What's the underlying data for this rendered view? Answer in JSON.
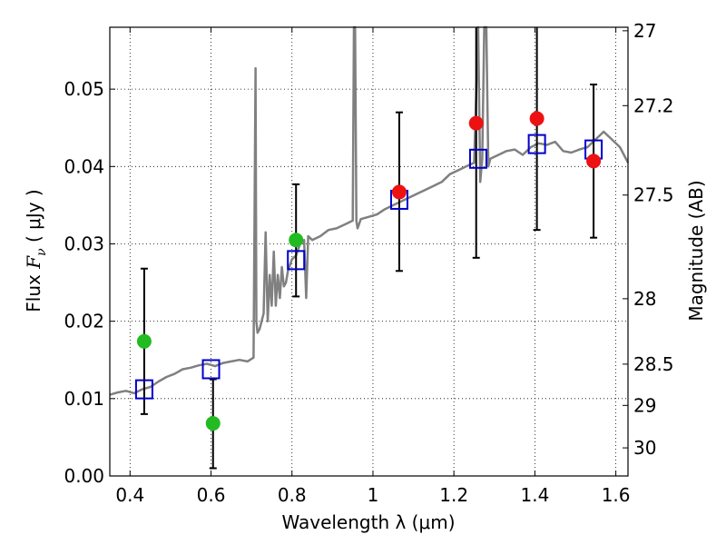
{
  "chart_data": {
    "type": "scatter",
    "xlabel": "Wavelength  λ (μm)",
    "ylabel_left_prefix": "Flux  ",
    "ylabel_left_symbol": "F",
    "ylabel_left_subscript": "ν",
    "ylabel_left_unit": "  ( μJy )",
    "ylabel_right": "Magnitude (AB)",
    "xlim": [
      0.35,
      1.63
    ],
    "ylim": [
      0.0,
      0.058
    ],
    "grid": true,
    "x_ticks": [
      {
        "value": 0.4,
        "label": "0.4"
      },
      {
        "value": 0.6,
        "label": "0.6"
      },
      {
        "value": 0.8,
        "label": "0.8"
      },
      {
        "value": 1.0,
        "label": "1"
      },
      {
        "value": 1.2,
        "label": "1.2"
      },
      {
        "value": 1.4,
        "label": "1.4"
      },
      {
        "value": 1.6,
        "label": "1.6"
      }
    ],
    "y_ticks": [
      {
        "value": 0.0,
        "label": "0.00"
      },
      {
        "value": 0.01,
        "label": "0.01"
      },
      {
        "value": 0.02,
        "label": "0.02"
      },
      {
        "value": 0.03,
        "label": "0.03"
      },
      {
        "value": 0.04,
        "label": "0.04"
      },
      {
        "value": 0.05,
        "label": "0.05"
      }
    ],
    "right_ticks": [
      {
        "mag": 27,
        "label": "27"
      },
      {
        "mag": 27.2,
        "label": "27.2"
      },
      {
        "mag": 27.5,
        "label": "27.5"
      },
      {
        "mag": 28,
        "label": "28"
      },
      {
        "mag": 28.5,
        "label": "28.5"
      },
      {
        "mag": 29,
        "label": "29"
      },
      {
        "mag": 30,
        "label": "30"
      }
    ],
    "template_spectrum": {
      "color": "#808080",
      "x": [
        0.35,
        0.37,
        0.39,
        0.41,
        0.43,
        0.45,
        0.47,
        0.49,
        0.51,
        0.53,
        0.55,
        0.57,
        0.59,
        0.61,
        0.63,
        0.65,
        0.67,
        0.69,
        0.705,
        0.71,
        0.712,
        0.715,
        0.72,
        0.73,
        0.735,
        0.74,
        0.745,
        0.75,
        0.755,
        0.76,
        0.765,
        0.77,
        0.775,
        0.78,
        0.785,
        0.79,
        0.8,
        0.81,
        0.82,
        0.83,
        0.835,
        0.84,
        0.85,
        0.87,
        0.89,
        0.91,
        0.93,
        0.95,
        0.953,
        0.956,
        0.959,
        0.962,
        0.97,
        0.99,
        1.01,
        1.03,
        1.05,
        1.07,
        1.09,
        1.11,
        1.13,
        1.15,
        1.17,
        1.19,
        1.21,
        1.23,
        1.25,
        1.26,
        1.265,
        1.27,
        1.275,
        1.28,
        1.285,
        1.29,
        1.31,
        1.33,
        1.35,
        1.37,
        1.39,
        1.41,
        1.43,
        1.45,
        1.47,
        1.49,
        1.51,
        1.53,
        1.55,
        1.57,
        1.59,
        1.61,
        1.63
      ],
      "y": [
        0.0105,
        0.0108,
        0.011,
        0.0107,
        0.0112,
        0.0115,
        0.0122,
        0.0128,
        0.0132,
        0.0138,
        0.014,
        0.0143,
        0.0145,
        0.0142,
        0.0146,
        0.0148,
        0.015,
        0.0148,
        0.0153,
        0.0527,
        0.02,
        0.0185,
        0.019,
        0.021,
        0.0315,
        0.02,
        0.026,
        0.022,
        0.029,
        0.022,
        0.026,
        0.023,
        0.027,
        0.0245,
        0.025,
        0.0265,
        0.028,
        0.0285,
        0.03,
        0.0305,
        0.023,
        0.031,
        0.0305,
        0.031,
        0.0318,
        0.032,
        0.0325,
        0.033,
        0.058,
        0.058,
        0.033,
        0.032,
        0.0332,
        0.0335,
        0.0338,
        0.0345,
        0.035,
        0.0355,
        0.036,
        0.0365,
        0.037,
        0.0375,
        0.038,
        0.039,
        0.0395,
        0.04,
        0.0405,
        0.058,
        0.038,
        0.041,
        0.058,
        0.058,
        0.04,
        0.041,
        0.0415,
        0.042,
        0.0422,
        0.0415,
        0.0425,
        0.043,
        0.0428,
        0.0432,
        0.042,
        0.0418,
        0.0422,
        0.0425,
        0.0435,
        0.0445,
        0.0435,
        0.0425,
        0.0405
      ]
    },
    "observed_points": [
      {
        "x": 0.435,
        "y": 0.0174,
        "err_low": 0.008,
        "err_high": 0.0268,
        "color": "#22bb22"
      },
      {
        "x": 0.605,
        "y": 0.0068,
        "err_low": 0.001,
        "err_high": 0.0125,
        "color": "#22bb22"
      },
      {
        "x": 0.81,
        "y": 0.0305,
        "err_low": 0.0232,
        "err_high": 0.0377,
        "color": "#22bb22"
      },
      {
        "x": 1.065,
        "y": 0.0367,
        "err_low": 0.0265,
        "err_high": 0.047,
        "color": "#ee1111"
      },
      {
        "x": 1.255,
        "y": 0.0456,
        "err_low": 0.0282,
        "err_high": 0.058,
        "color": "#ee1111"
      },
      {
        "x": 1.405,
        "y": 0.0462,
        "err_low": 0.0318,
        "err_high": 0.058,
        "color": "#ee1111"
      },
      {
        "x": 1.545,
        "y": 0.0407,
        "err_low": 0.0308,
        "err_high": 0.0506,
        "color": "#ee1111"
      }
    ],
    "model_points": {
      "color": "#0000cc",
      "x": [
        0.435,
        0.6,
        0.81,
        1.065,
        1.26,
        1.405,
        1.545
      ],
      "y": [
        0.0112,
        0.0138,
        0.0279,
        0.0357,
        0.041,
        0.0429,
        0.0422
      ]
    }
  }
}
